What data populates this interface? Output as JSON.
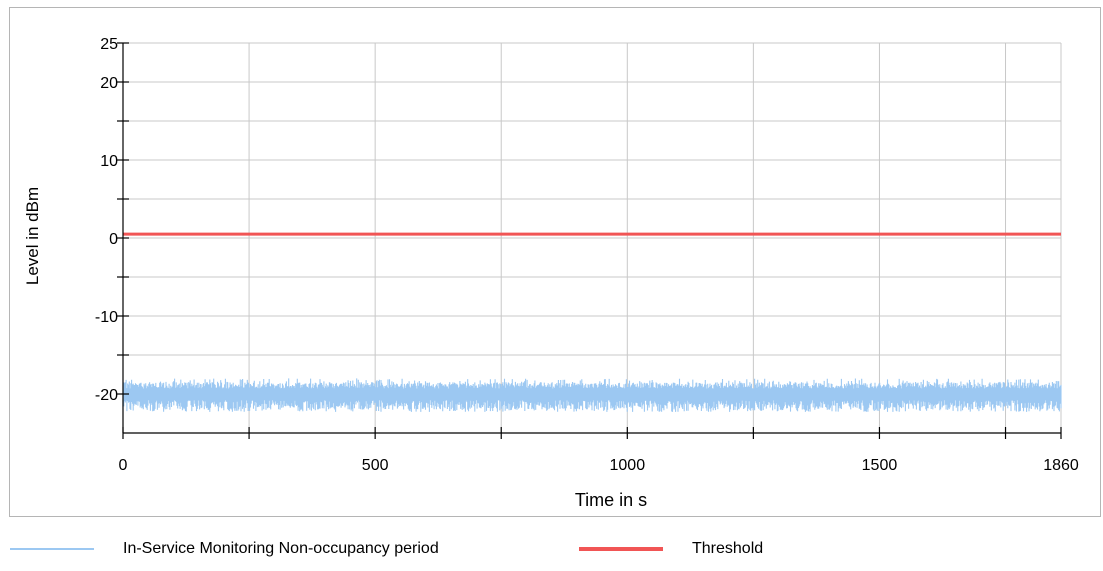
{
  "chart_data": {
    "type": "line",
    "xlabel": "Time in s",
    "ylabel": "Level in dBm",
    "xlim": [
      0,
      1860
    ],
    "ylim": [
      -25,
      25
    ],
    "xticks_labeled": [
      0,
      500,
      1000,
      1500,
      1860
    ],
    "xticks_minor": [
      250,
      750,
      1250,
      1750
    ],
    "xgrid": [
      0,
      250,
      500,
      750,
      1000,
      1250,
      1500,
      1750,
      1860
    ],
    "yticks_labeled": [
      25,
      20,
      10,
      0,
      -10,
      -20
    ],
    "yticks_minor": [
      15,
      5,
      -5,
      -15
    ],
    "ygrid": [
      25,
      20,
      15,
      10,
      5,
      0,
      -5,
      -10,
      -15,
      -20
    ],
    "grid": true,
    "legend_position": "bottom",
    "series": [
      {
        "name": "In-Service Monitoring Non-occupancy period",
        "color": "#9cc8f2",
        "kind": "noise-band",
        "x": [
          0,
          1860
        ],
        "baseline": -20,
        "range_min": -21.5,
        "range_max": -18
      },
      {
        "name": "Threshold",
        "color": "#f15555",
        "kind": "line",
        "x": [
          0,
          1860
        ],
        "values": [
          0.5,
          0.5
        ]
      }
    ]
  }
}
